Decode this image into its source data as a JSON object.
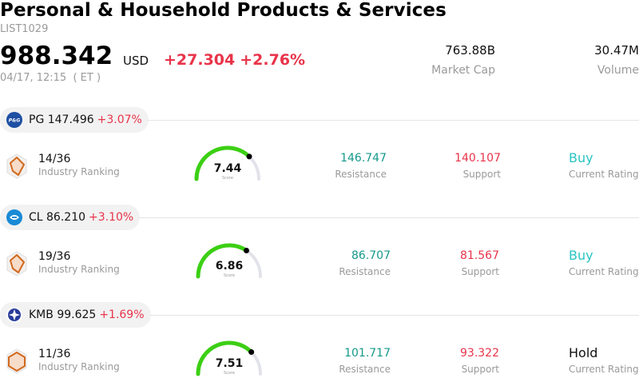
{
  "header": {
    "title": "Personal & Household Products & Services",
    "code": "LIST1029",
    "price": "988.342",
    "currency": "USD",
    "change_abs": "+27.304",
    "change_pct": "+2.76%",
    "timestamp": "04/17, 12:15  ( ET )"
  },
  "stats": {
    "market_cap": {
      "value": "763.88B",
      "label": "Market Cap"
    },
    "volume": {
      "value": "30.47M",
      "label": "Volume"
    }
  },
  "stocks": [
    {
      "logo_icon": "pg-logo-icon",
      "symbol_price": "PG 147.496",
      "change_pct": "+3.07%",
      "ranking": "14/36",
      "ranking_label": "Industry Ranking",
      "score": "7.44",
      "score_fraction": 0.744,
      "score_label": "Score",
      "resistance": "146.747",
      "resistance_label": "Resistance",
      "support": "140.107",
      "support_label": "Support",
      "rating": "Buy",
      "rating_label": "Current Rating"
    },
    {
      "logo_icon": "cl-logo-icon",
      "symbol_price": "CL 86.210",
      "change_pct": "+3.10%",
      "ranking": "19/36",
      "ranking_label": "Industry Ranking",
      "score": "6.86",
      "score_fraction": 0.686,
      "score_label": "Score",
      "resistance": "86.707",
      "resistance_label": "Resistance",
      "support": "81.567",
      "support_label": "Support",
      "rating": "Buy",
      "rating_label": "Current Rating"
    },
    {
      "logo_icon": "kmb-logo-icon",
      "symbol_price": "KMB 99.625",
      "change_pct": "+1.69%",
      "ranking": "11/36",
      "ranking_label": "Industry Ranking",
      "score": "7.51",
      "score_fraction": 0.751,
      "score_label": "Score",
      "resistance": "101.717",
      "resistance_label": "Resistance",
      "support": "93.322",
      "support_label": "Support",
      "rating": "Hold",
      "rating_label": "Current Rating"
    }
  ],
  "colors": {
    "positive_red": "#e8344a",
    "resistance_green": "#15998a",
    "buy_teal": "#2bc4c4",
    "gauge_green": "#3ccf14",
    "gauge_track": "#e2e3ea"
  }
}
